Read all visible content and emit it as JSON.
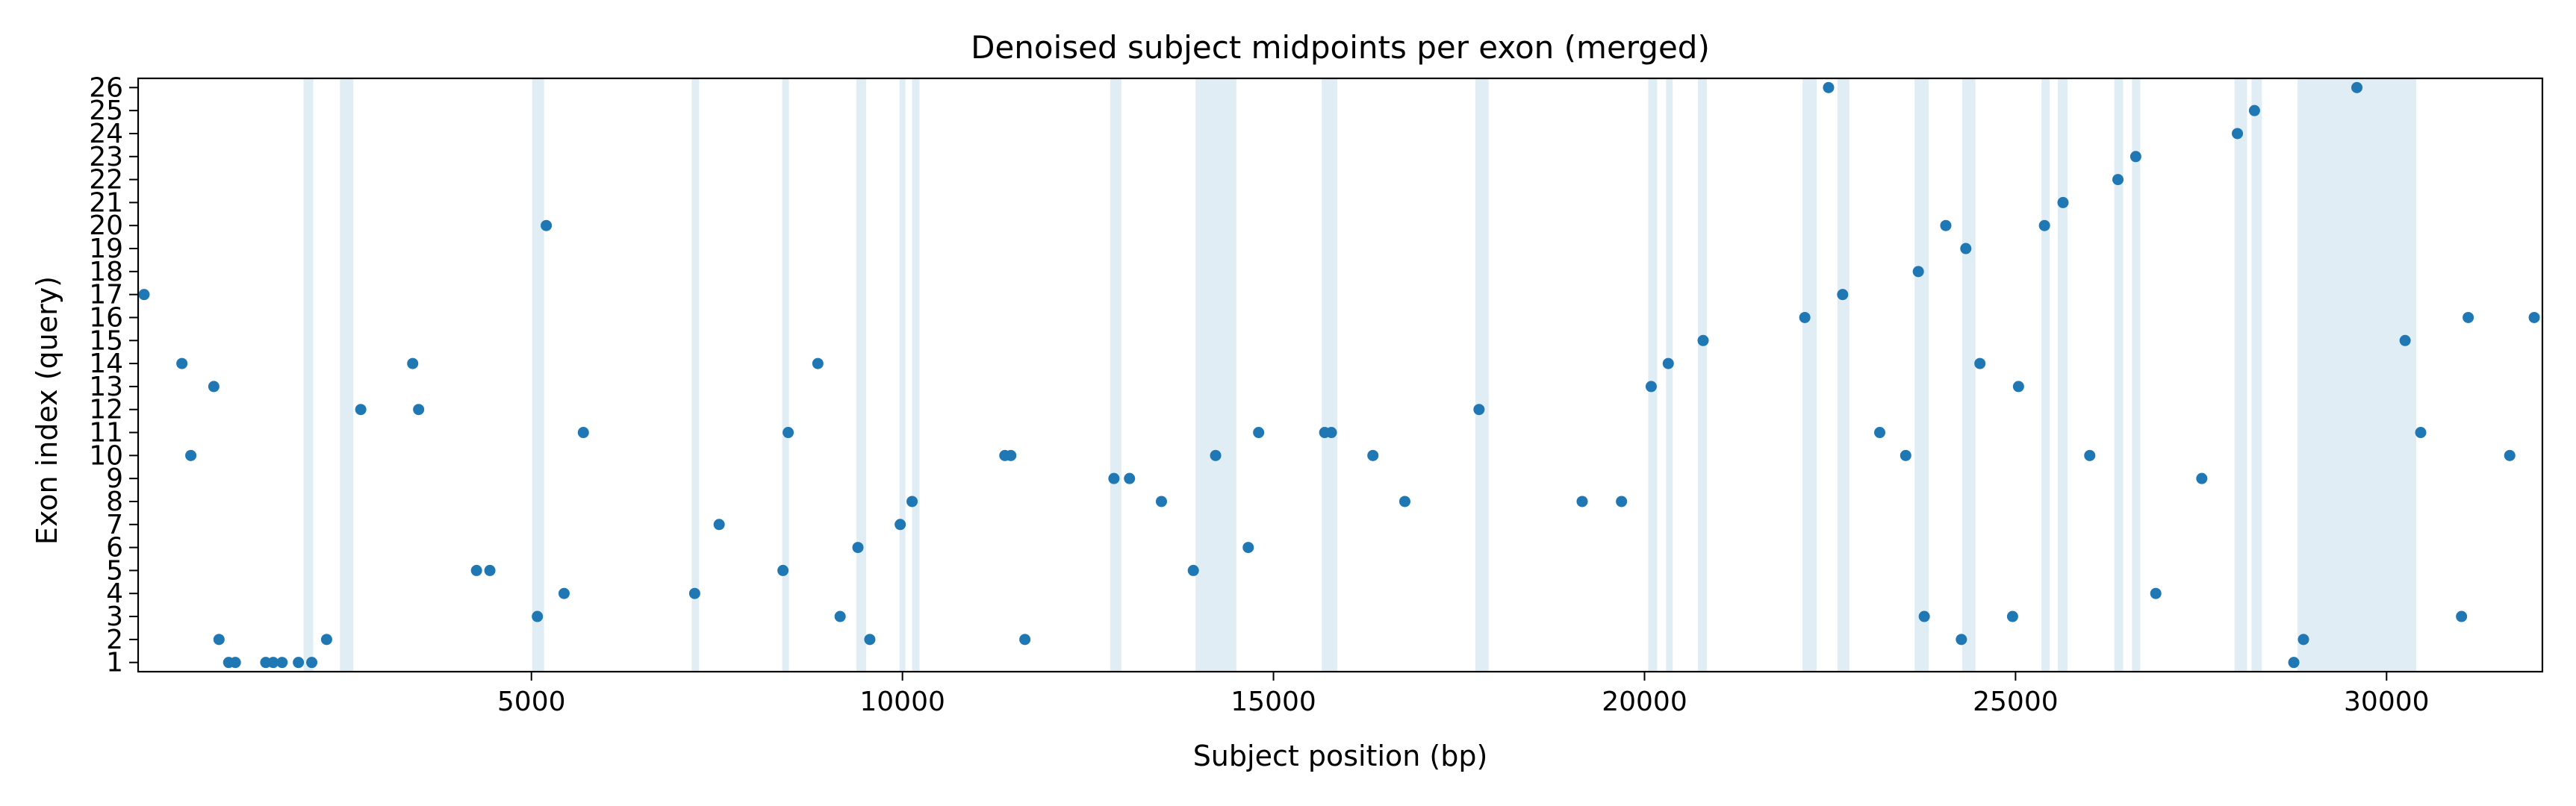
{
  "chart_data": {
    "type": "scatter",
    "title": "Denoised subject midpoints per exon (merged)",
    "xlabel": "Subject position (bp)",
    "ylabel": "Exon index (query)",
    "xlim": [
      -300,
      32100
    ],
    "ylim": [
      0.6,
      26.4
    ],
    "xticks": [
      5000,
      10000,
      15000,
      20000,
      25000,
      30000
    ],
    "yticks": [
      1,
      2,
      3,
      4,
      5,
      6,
      7,
      8,
      9,
      10,
      11,
      12,
      13,
      14,
      15,
      16,
      17,
      18,
      19,
      20,
      21,
      22,
      23,
      24,
      25,
      26
    ],
    "grid": false,
    "legend": false,
    "colors": {
      "points": "#1f77b4",
      "bands": "#d6e7f2",
      "axes": "#000000"
    },
    "bands": [
      [
        1930,
        2060
      ],
      [
        2420,
        2600
      ],
      [
        5010,
        5170
      ],
      [
        7160,
        7260
      ],
      [
        8380,
        8470
      ],
      [
        9380,
        9510
      ],
      [
        9960,
        10040
      ],
      [
        10130,
        10230
      ],
      [
        12800,
        12950
      ],
      [
        13950,
        14500
      ],
      [
        15650,
        15860
      ],
      [
        17720,
        17900
      ],
      [
        20050,
        20170
      ],
      [
        20290,
        20380
      ],
      [
        20720,
        20840
      ],
      [
        22130,
        22320
      ],
      [
        22600,
        22760
      ],
      [
        23640,
        23830
      ],
      [
        24280,
        24460
      ],
      [
        25350,
        25460
      ],
      [
        25570,
        25700
      ],
      [
        26330,
        26450
      ],
      [
        26570,
        26680
      ],
      [
        27950,
        28120
      ],
      [
        28180,
        28320
      ],
      [
        28800,
        30400
      ]
    ],
    "points": [
      {
        "x": -220,
        "y": 17
      },
      {
        "x": 290,
        "y": 14
      },
      {
        "x": 410,
        "y": 10
      },
      {
        "x": 720,
        "y": 13
      },
      {
        "x": 790,
        "y": 2
      },
      {
        "x": 920,
        "y": 1
      },
      {
        "x": 1010,
        "y": 1
      },
      {
        "x": 1420,
        "y": 1
      },
      {
        "x": 1520,
        "y": 1
      },
      {
        "x": 1640,
        "y": 1
      },
      {
        "x": 1860,
        "y": 1
      },
      {
        "x": 2040,
        "y": 1
      },
      {
        "x": 2240,
        "y": 2
      },
      {
        "x": 2700,
        "y": 12
      },
      {
        "x": 3400,
        "y": 14
      },
      {
        "x": 3480,
        "y": 12
      },
      {
        "x": 4260,
        "y": 5
      },
      {
        "x": 4440,
        "y": 5
      },
      {
        "x": 5080,
        "y": 3
      },
      {
        "x": 5200,
        "y": 20
      },
      {
        "x": 5440,
        "y": 4
      },
      {
        "x": 5700,
        "y": 11
      },
      {
        "x": 7200,
        "y": 4
      },
      {
        "x": 7530,
        "y": 7
      },
      {
        "x": 8390,
        "y": 5
      },
      {
        "x": 8460,
        "y": 11
      },
      {
        "x": 8860,
        "y": 14
      },
      {
        "x": 9160,
        "y": 3
      },
      {
        "x": 9400,
        "y": 6
      },
      {
        "x": 9560,
        "y": 2
      },
      {
        "x": 9970,
        "y": 7
      },
      {
        "x": 10130,
        "y": 8
      },
      {
        "x": 11380,
        "y": 10
      },
      {
        "x": 11460,
        "y": 10
      },
      {
        "x": 11650,
        "y": 2
      },
      {
        "x": 12850,
        "y": 9
      },
      {
        "x": 13060,
        "y": 9
      },
      {
        "x": 13490,
        "y": 8
      },
      {
        "x": 13920,
        "y": 5
      },
      {
        "x": 14220,
        "y": 10
      },
      {
        "x": 14660,
        "y": 6
      },
      {
        "x": 14800,
        "y": 11
      },
      {
        "x": 15690,
        "y": 11
      },
      {
        "x": 15780,
        "y": 11
      },
      {
        "x": 16340,
        "y": 10
      },
      {
        "x": 16770,
        "y": 8
      },
      {
        "x": 17770,
        "y": 12
      },
      {
        "x": 19160,
        "y": 8
      },
      {
        "x": 19690,
        "y": 8
      },
      {
        "x": 20090,
        "y": 13
      },
      {
        "x": 20320,
        "y": 14
      },
      {
        "x": 20790,
        "y": 15
      },
      {
        "x": 22160,
        "y": 16
      },
      {
        "x": 22480,
        "y": 26
      },
      {
        "x": 22670,
        "y": 17
      },
      {
        "x": 23170,
        "y": 11
      },
      {
        "x": 23520,
        "y": 10
      },
      {
        "x": 23690,
        "y": 18
      },
      {
        "x": 23770,
        "y": 3
      },
      {
        "x": 24060,
        "y": 20
      },
      {
        "x": 24270,
        "y": 2
      },
      {
        "x": 24330,
        "y": 19
      },
      {
        "x": 24520,
        "y": 14
      },
      {
        "x": 24960,
        "y": 3
      },
      {
        "x": 25040,
        "y": 13
      },
      {
        "x": 25390,
        "y": 20
      },
      {
        "x": 25640,
        "y": 21
      },
      {
        "x": 26000,
        "y": 10
      },
      {
        "x": 26380,
        "y": 22
      },
      {
        "x": 26620,
        "y": 23
      },
      {
        "x": 26890,
        "y": 4
      },
      {
        "x": 27510,
        "y": 9
      },
      {
        "x": 27990,
        "y": 24
      },
      {
        "x": 28220,
        "y": 25
      },
      {
        "x": 28750,
        "y": 1
      },
      {
        "x": 28880,
        "y": 2
      },
      {
        "x": 29600,
        "y": 26
      },
      {
        "x": 30250,
        "y": 15
      },
      {
        "x": 30460,
        "y": 11
      },
      {
        "x": 31010,
        "y": 3
      },
      {
        "x": 31100,
        "y": 16
      },
      {
        "x": 31660,
        "y": 10
      },
      {
        "x": 31990,
        "y": 16
      }
    ]
  }
}
